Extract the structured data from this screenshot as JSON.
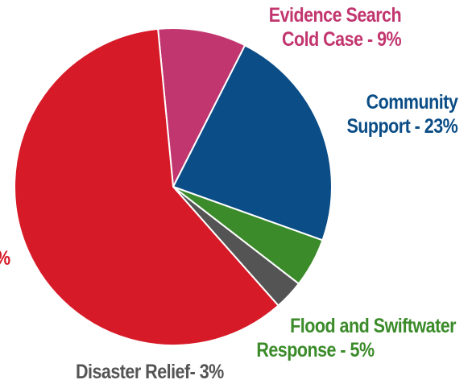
{
  "chart_data": {
    "type": "pie",
    "title": "",
    "slices": [
      {
        "line1": "Evidence Search",
        "line2": "Cold Case - 9%",
        "value": 9,
        "color": "#c2366f"
      },
      {
        "line1": "Community",
        "line2": "Support - 23%",
        "value": 23,
        "color": "#0b4d86"
      },
      {
        "line1": "Flood and Swiftwater",
        "line2": "Response - 5%",
        "value": 5,
        "color": "#3b8b2a"
      },
      {
        "line1": "Disaster Relief- 3%",
        "line2": "",
        "value": 3,
        "color": "#545454"
      },
      {
        "line1": "",
        "line2": "%",
        "value": 60,
        "color": "#d71a28"
      }
    ]
  }
}
